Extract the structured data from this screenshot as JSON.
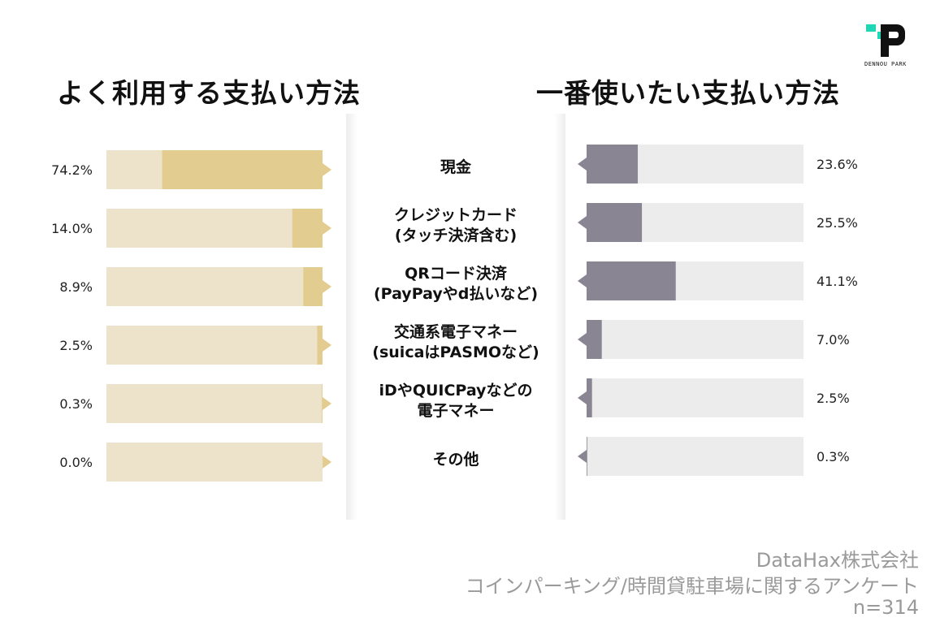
{
  "logo": {
    "text": "DENNOU PARK",
    "accent": "#1fd6b5"
  },
  "titles": {
    "left": "よく利用する支払い方法",
    "right": "一番使いたい支払い方法"
  },
  "chart_data": {
    "type": "bar",
    "orientation": "horizontal",
    "layout": "butterfly",
    "xlim": [
      0,
      100
    ],
    "categories": [
      [
        "現金"
      ],
      [
        "クレジットカード",
        "(タッチ決済含む)"
      ],
      [
        "QRコード決済",
        "(PayPayやd払いなど)"
      ],
      [
        "交通系電子マネー",
        "(suicaはPASMOなど)"
      ],
      [
        "iDやQUICPayなどの",
        "電子マネー"
      ],
      [
        "その他"
      ]
    ],
    "series": [
      {
        "name": "よく利用する支払い方法",
        "values": [
          74.2,
          14.0,
          8.9,
          2.5,
          0.3,
          0.0
        ],
        "labels": [
          "74.2%",
          "14.0%",
          "8.9%",
          "2.5%",
          "0.3%",
          "0.0%"
        ],
        "bar_color": "#e3cc8f",
        "track_color": "#ede3cb"
      },
      {
        "name": "一番使いたい支払い方法",
        "values": [
          23.6,
          25.5,
          41.1,
          7.0,
          2.5,
          0.3
        ],
        "labels": [
          "23.6%",
          "25.5%",
          "41.1%",
          "7.0%",
          "2.5%",
          "0.3%"
        ],
        "bar_color": "#8a8592",
        "track_color": "#ececec"
      }
    ]
  },
  "source": {
    "line1": "DataHax株式会社",
    "line2": "コインパーキング/時間貸駐車場に関するアンケート",
    "line3": "n=314"
  }
}
